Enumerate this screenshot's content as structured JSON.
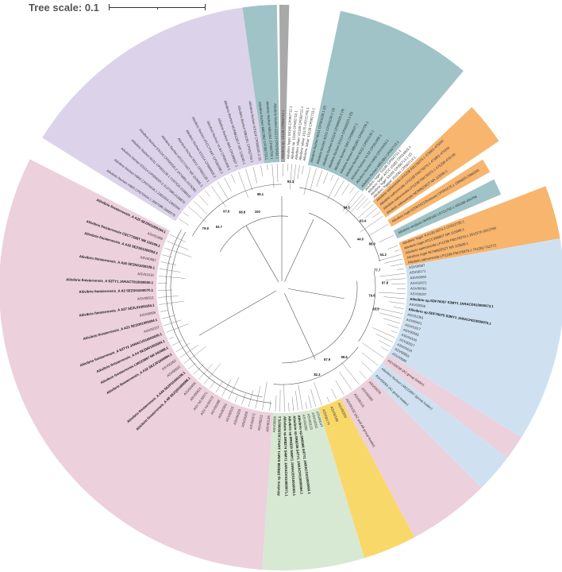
{
  "tree_scale": {
    "label": "Tree scale: 0.1"
  },
  "clades": [
    {
      "key": "teal_right",
      "color": "#9fc3c6",
      "labels": [
        "Aliivibrio fischeri MJ11 CP001139.1 (2)",
        "Aliivibrio fischeri MJ11 CP001139.1 (3)",
        "Aliivibrio fischeri ES114 CP000020.2 (4)",
        "Aliivibrio fischeri ES114 CP000020.2 (5)",
        "Aliivibrio fischeri SR5 CP099597.1",
        "Aliivibrio fischeri MB11B1 CP092709.1",
        "Aliivibrio fischeri MJ11 CP001133.1",
        "Aliivibrio fischeri VLS2 CP091468.1",
        "Aliivibrio fischeri H905 CP070434.1",
        "Aliivibrio fischeri MB13B2 CP092713.1"
      ]
    },
    {
      "key": "orange_big",
      "color": "#f7b56e",
      "labels": [
        "Aliivibrio salmonicida LFI1238 FM178379.1 473601-475091",
        "Aliivibrio salmonicida LFI1238 FM178379.1 473801-475291",
        "Aliivibrio salmonicida LFI1238 FM178379.1 475238-476728",
        "Aliivibrio salmonicida NCIMB2262T NR 119260.1"
      ]
    },
    {
      "key": "orange_small",
      "color": "#f7b56e",
      "labels": [
        "Aliivibrio logei 6228/2021/bioassay CP081675.1 2986800-2988290"
      ]
    },
    {
      "key": "teal_small",
      "color": "#9fc3c6",
      "labels": [
        "Aliivibrio wodanis 06/09/160 LR721750.1 433266-434756"
      ]
    },
    {
      "key": "orange_low",
      "color": "#f7b56e",
      "labels": [
        "Aliivibrio 'logei' A.A130-0074.2 CP012735.1",
        "Aliivibrio logei ATCC29985T NR 115689.1",
        "Aliivibrio salmonicida LFI1238 FM178379.1 2612270-2613760",
        "Aliivibrio logei NCIMB2252T NR 115638.1",
        "Aliivibrio salmonicida LFI1238 FM178379.1 741282-742772"
      ]
    },
    {
      "key": "blue_big",
      "color": "#cfe1f1",
      "labels": [
        "ASV00087",
        "ASV00171",
        "ASV00083",
        "ASV02872",
        "ASV00081",
        "ASV00207",
        "Aliivibrio sp.SDF76057 S3MY1 JARACD010000073.1",
        "ASV00266",
        "Aliivibrio sp.SDF76075 S3MY1 JARACH010000075.1",
        "ASV01361",
        "ASV00421",
        "ASV01017",
        "ASV00333",
        "ASV03100",
        "ASV00027",
        "ASV00418",
        "ASV00955",
        "ASV00085"
      ]
    },
    {
      "key": "pink_thin",
      "color": "#ecd0dc",
      "labels": [
        "ASV00038 (A2 group leader)"
      ]
    },
    {
      "key": "blue_small",
      "color": "#cfe1f1",
      "labels": [
        "Aliivibrio fischeri LMG22897 (group leader)",
        "ASV00064 (A1 group leader)"
      ]
    },
    {
      "key": "pink_small",
      "color": "#ecd0dc",
      "labels": [
        "ASV00078",
        "ASV00082",
        "ASV00115",
        "ASV00192 (A2 and A8 group leader)"
      ]
    },
    {
      "key": "yellow",
      "color": "#f9d86a",
      "labels": [
        "ASV00209",
        "ASV00198",
        "ASV00174"
      ]
    },
    {
      "key": "green",
      "color": "#d7e9d3",
      "labels": [
        "ASV00047",
        "ASV00052",
        "ASV00123",
        "ASV00290",
        "Aliivibrio sp.SR8368 S4TY1 JARACG010000060.1",
        "Aliivibrio sp.SR8336 S4TY1 JARACF010000064.1",
        "Aliivibrio sp.SR8329 S4MY1 JARACE010000063.1",
        "Aliivibrio sp.SR8274 S4MY1 JARACK010000071.1",
        "Aliivibrio sp.SR8268 S4MY1 JARACJ010000075.1",
        "ASV00060"
      ]
    },
    {
      "key": "pink_big",
      "color": "#ecd0dc",
      "labels": [
        "ASV00135",
        "ASV00211",
        "ASV00372",
        "ASV00350",
        "ASV00333",
        "ASV00315",
        "ASV00301",
        "ASV00288",
        "ASV hd 00072",
        "ASV hd 00071",
        "ASV00621",
        "ASV00458",
        "Aliivibrio finisterrensis_A A8 SEZQ01000098.1",
        "Aliivibrio finisterrensis_A A44 SEZP01000108.1",
        "ASV00552",
        "ASV00262",
        "Aliivibrio finisterrensis_A A32 SEZJ01000094.1",
        "Aliivibrio finisterrensis LMG23897 NR 042488.1",
        "Aliivibrio finisterrensis_A A4 SEZM01000094.1",
        "Aliivibrio finisterrensis_A S2TY2 JARACU010000030.1",
        "ASV00157",
        "Aliivibrio finisterrensis_A A21 SEZO01000094.1",
        "ASV00095",
        "Aliivibrio finisterrensis_A A37 SEZL01000184.1",
        "ASV00012",
        "Aliivibrio finisterrensis_A A2 SEZS01000070.1",
        "Aliivibrio finisterrensis_A S2TY1 JARACT010000035.1",
        "ASV01616",
        "Aliivibrio finisterrensis_A A26 SEZN01000105.1",
        "ASV00587",
        "Aliivibrio finisterrensis_A A32 SEZS01000002.1",
        "Aliivibrio finisterrensis CECT7228T NR 116109.1",
        "ASV02465",
        "Aliivibrio finisterrensis_A A25 SEZR01000194.1"
      ]
    },
    {
      "key": "purple",
      "color": "#dcd3ea",
      "labels": [
        "Aliivibrio fischeri H905 CP070434.1 2667086-2668576",
        "Aliivibrio fischeri H905 CP070434.1 2381054-2382544",
        "Aliivibrio fischeri ES114 CP000020.2 2137386-2138876",
        "Aliivibrio fischeri MJ11 CP001139.1 2167420-2168910",
        "Aliivibrio fischeri ES114 CP000020.2 2474891-2476381",
        "Aliivibrio fischeri ATCC7744T NR 114985.1",
        "Aliivibrio fischeri MJ11 CP001139.1",
        "Aliivibrio fischeri ES114 CP000020.2",
        "Aliivibrio fischeri ATCC7744T CP032096.1",
        "Aliivibrio fischeri VLS2 CP091468.1",
        "Aliivibrio fischeri SR5 CP099597.1",
        "Aliivibrio fischeri NCIMB1281T NR 119240.1",
        "Aliivibrio fischeri MB11B1 CP092709.1",
        "Aliivibrio fischeri ES114 CP000020.2 (2)"
      ]
    },
    {
      "key": "teal_left",
      "color": "#9fc3c6",
      "labels": [
        "Aliivibrio fischeri MB13B2 CP092713.1",
        "Aliivibrio fischeri MB11B1 CP092709.1",
        "Aliivibrio fischeri ES213 CP070434.1"
      ]
    },
    {
      "key": "gray",
      "color": "#a9a9a9",
      "labels": [
        "Aliivibrio sp. 1S128 CP092712.1"
      ]
    },
    {
      "key": "none_top",
      "color": "#ffffff",
      "labels": [
        "Aliivibrio 'logei' 5S186 CP092712.1",
        "Aliivibrio sp. 1S165 CP092712.1",
        "Aliivibrio 'sifiae' 1S159 CP092712.1",
        "Aliivibrio 'sifiae' 1S175 LR721750.1",
        "Aliivibrio 'sifiae' 1S128 CP092713.1"
      ]
    },
    {
      "key": "none_right",
      "color": "#ffffff",
      "labels": [
        "Aliivibrio 'logei' 5S186 CP092712.1",
        "Aliivibrio 'logei' ATCC 15382 CP014803.1",
        "Aliivibrio 'logei' 5S186 CP092713.1 (2)",
        "Aliivibrio 'friggae' 2S1081 CP092713.1"
      ]
    }
  ],
  "bootstrap": [
    "52.7",
    "97.6",
    "98.8",
    "79.8",
    "100",
    "92.3",
    "84.5",
    "63.4",
    "44.0",
    "88.0",
    "54.2",
    "77.7",
    "87.8",
    "79.6",
    "83.5",
    "99.6",
    "87.9",
    "82.3",
    "98.1"
  ]
}
